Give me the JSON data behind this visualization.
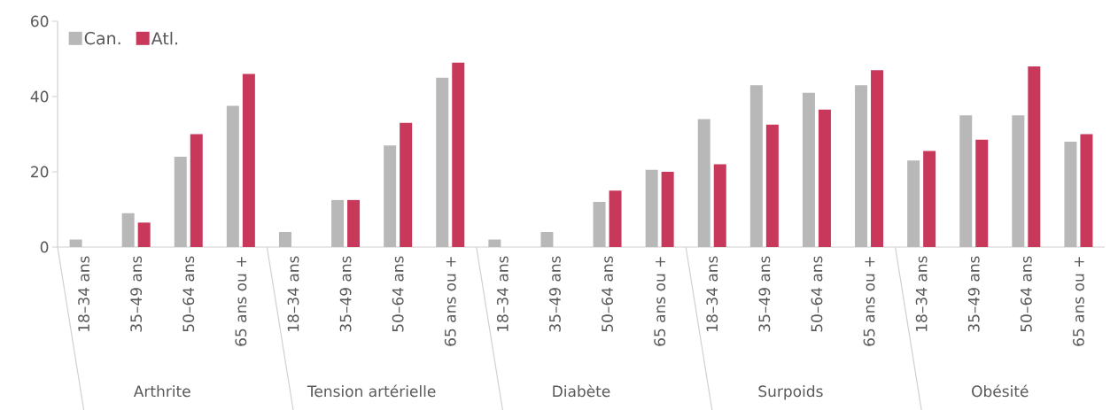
{
  "chart_data": [
    {
      "type": "bar",
      "xlabel": "Arthrite",
      "categories": [
        "18–34 ans",
        "35–49 ans",
        "50–64 ans",
        "65 ans ou +"
      ],
      "ylim": [
        0,
        60
      ],
      "yticks": [
        0,
        20,
        40,
        60
      ],
      "legend": "top left",
      "series": [
        {
          "name": "Can.",
          "color": "#b8b8b8",
          "values": [
            2,
            9,
            24,
            37.5
          ]
        },
        {
          "name": "Atl.",
          "color": "#c8385a",
          "values": [
            null,
            6.5,
            30,
            46
          ]
        }
      ]
    },
    {
      "type": "bar",
      "xlabel": "Tension artérielle",
      "categories": [
        "18–34 ans",
        "35–49 ans",
        "50–64 ans",
        "65 ans ou +"
      ],
      "ylim": [
        0,
        60
      ],
      "yticks": [
        0,
        20,
        40,
        60
      ],
      "tick_labels": "x",
      "series": [
        {
          "color": "#b8b8b8",
          "values": [
            4,
            12.5,
            27,
            45
          ]
        },
        {
          "color": "#c8385a",
          "values": [
            null,
            12.5,
            33,
            49
          ]
        }
      ]
    },
    {
      "type": "bar",
      "xlabel": "Diabète",
      "categories": [
        "18–34 ans",
        "35–49 ans",
        "50–64 ans",
        "65 ans ou +"
      ],
      "ylim": [
        0,
        60
      ],
      "yticks": [
        0,
        20,
        40,
        60
      ],
      "tick_labels": "x",
      "series": [
        {
          "color": "#b8b8b8",
          "values": [
            2,
            4,
            12,
            20.5
          ]
        },
        {
          "color": "#c8385a",
          "values": [
            null,
            null,
            15,
            20
          ]
        }
      ]
    },
    {
      "type": "bar",
      "xlabel": "Surpoids",
      "categories": [
        "18–34 ans",
        "35–49 ans",
        "50–64 ans",
        "65 ans ou +"
      ],
      "ylim": [
        0,
        60
      ],
      "yticks": [
        0,
        20,
        40,
        60
      ],
      "tick_labels": "x",
      "series": [
        {
          "color": "#b8b8b8",
          "values": [
            34,
            43,
            41,
            43
          ]
        },
        {
          "color": "#c8385a",
          "values": [
            22,
            32.5,
            36.5,
            47
          ]
        }
      ]
    },
    {
      "type": "bar",
      "xlabel": "Obésité",
      "categories": [
        "18–34 ans",
        "35–49 ans",
        "50–64 ans",
        "65 ans ou +"
      ],
      "ylim": [
        0,
        60
      ],
      "yticks": [
        0,
        20,
        40,
        60
      ],
      "tick_labels": "x",
      "series": [
        {
          "color": "#b8b8b8",
          "values": [
            23,
            35,
            35,
            28
          ]
        },
        {
          "color": "#c8385a",
          "values": [
            25.5,
            28.5,
            48,
            30
          ]
        }
      ]
    }
  ]
}
